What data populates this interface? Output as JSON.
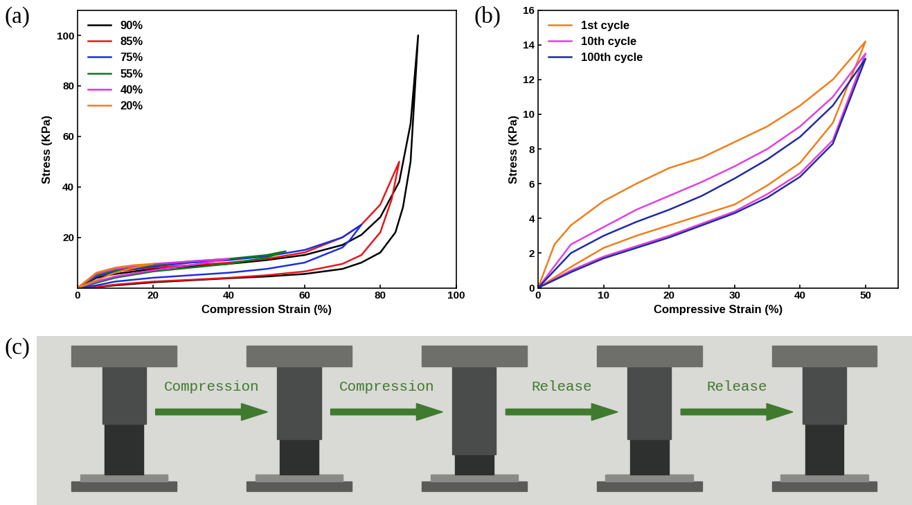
{
  "chart_data": [
    {
      "type": "line",
      "title": "(a)",
      "x_label": "Compression Strain (%)",
      "y_label": "Stress (KPa)",
      "xlim": [
        0,
        100
      ],
      "xticks": [
        0,
        20,
        40,
        60,
        80,
        100
      ],
      "ylim": [
        0,
        110
      ],
      "yticks": [
        20,
        40,
        60,
        80,
        100
      ],
      "legend": "upper left",
      "series": [
        {
          "name": "90%",
          "color": "#000000",
          "x": [
            0,
            5,
            10,
            20,
            30,
            40,
            50,
            60,
            70,
            75,
            80,
            85,
            88,
            90,
            88,
            86,
            84,
            80,
            75,
            70,
            60,
            50,
            40,
            30,
            20,
            10,
            5,
            0
          ],
          "values": [
            0,
            4,
            5.5,
            7.5,
            8.5,
            9.5,
            11,
            13,
            17,
            21,
            28,
            42,
            65,
            100,
            50,
            32,
            22,
            14,
            10,
            7.5,
            5.5,
            4.5,
            3.8,
            3,
            2.2,
            1,
            0.3,
            0
          ]
        },
        {
          "name": "85%",
          "color": "#e8161b",
          "x": [
            0,
            5,
            10,
            20,
            30,
            40,
            50,
            60,
            70,
            75,
            80,
            85,
            83,
            80,
            75,
            70,
            60,
            50,
            40,
            30,
            20,
            10,
            5,
            0
          ],
          "values": [
            0,
            4.5,
            6.5,
            8,
            9,
            10,
            11.5,
            14,
            20,
            25,
            33,
            50,
            35,
            22,
            13,
            9.5,
            6.5,
            5,
            4,
            3.2,
            2.5,
            1.3,
            0.4,
            0
          ]
        },
        {
          "name": "75%",
          "color": "#1a2fe0",
          "x": [
            0,
            5,
            10,
            20,
            30,
            40,
            50,
            60,
            70,
            75,
            72,
            70,
            60,
            50,
            40,
            30,
            20,
            10,
            5,
            0
          ],
          "values": [
            0,
            4.5,
            6.5,
            8.5,
            10,
            11,
            12.5,
            15,
            20,
            25,
            19,
            16,
            10,
            7.5,
            6,
            5,
            4,
            2.5,
            1,
            0
          ]
        },
        {
          "name": "55%",
          "color": "#0a7a1e",
          "x": [
            0,
            5,
            10,
            20,
            30,
            40,
            50,
            55,
            50,
            40,
            30,
            20,
            10,
            5,
            0
          ],
          "values": [
            0,
            5,
            7,
            9,
            10.5,
            11.5,
            13,
            14.5,
            12,
            9.5,
            8,
            6.5,
            4,
            2,
            0
          ]
        },
        {
          "name": "40%",
          "color": "#e030e0",
          "x": [
            0,
            5,
            10,
            20,
            30,
            40,
            30,
            20,
            10,
            5,
            0
          ],
          "values": [
            0,
            5.5,
            7.5,
            9.5,
            10.5,
            11.5,
            9,
            7,
            4.5,
            2.5,
            0
          ]
        },
        {
          "name": "20%",
          "color": "#f07d1a",
          "x": [
            0,
            5,
            10,
            15,
            20,
            15,
            10,
            5,
            0
          ],
          "values": [
            0,
            6,
            8,
            9,
            9.5,
            8,
            6,
            3,
            0
          ]
        }
      ]
    },
    {
      "type": "line",
      "title": "(b)",
      "x_label": "Compressive Strain (%)",
      "y_label": "Stress (KPa)",
      "xlim": [
        0,
        55
      ],
      "xticks": [
        0,
        10,
        20,
        30,
        40,
        50
      ],
      "ylim": [
        0,
        16
      ],
      "yticks": [
        0,
        2,
        4,
        6,
        8,
        10,
        12,
        14,
        16
      ],
      "legend": "upper left",
      "series": [
        {
          "name": "1st cycle",
          "color": "#f07d1a",
          "x": [
            0,
            2.5,
            5,
            10,
            15,
            20,
            25,
            30,
            35,
            40,
            45,
            50,
            45,
            40,
            35,
            30,
            25,
            20,
            15,
            10,
            5,
            0
          ],
          "values": [
            0,
            2.5,
            3.6,
            5.0,
            6.0,
            6.9,
            7.5,
            8.4,
            9.3,
            10.5,
            12.0,
            14.2,
            9.5,
            7.2,
            5.9,
            4.8,
            4.2,
            3.6,
            3.0,
            2.3,
            1.2,
            0
          ]
        },
        {
          "name": "10th cycle",
          "color": "#e040e0",
          "x": [
            0,
            5,
            10,
            15,
            20,
            25,
            30,
            35,
            40,
            45,
            50,
            45,
            40,
            35,
            30,
            25,
            20,
            15,
            10,
            5,
            0
          ],
          "values": [
            0,
            2.5,
            3.5,
            4.5,
            5.3,
            6.1,
            7.0,
            8.0,
            9.3,
            11.0,
            13.5,
            8.5,
            6.6,
            5.4,
            4.4,
            3.7,
            3.0,
            2.4,
            1.8,
            1.0,
            0
          ]
        },
        {
          "name": "100th cycle",
          "color": "#1f2aa0",
          "x": [
            0,
            5,
            10,
            15,
            20,
            25,
            30,
            35,
            40,
            45,
            50,
            45,
            40,
            35,
            30,
            25,
            20,
            15,
            10,
            5,
            0
          ],
          "values": [
            0,
            2.0,
            3.0,
            3.8,
            4.5,
            5.3,
            6.3,
            7.4,
            8.7,
            10.5,
            13.2,
            8.3,
            6.4,
            5.2,
            4.3,
            3.6,
            2.9,
            2.3,
            1.7,
            0.9,
            0
          ]
        }
      ]
    }
  ],
  "panel": {
    "label": "(c)",
    "steps": [
      "Compression",
      "Compression",
      "Release",
      "Release"
    ]
  }
}
